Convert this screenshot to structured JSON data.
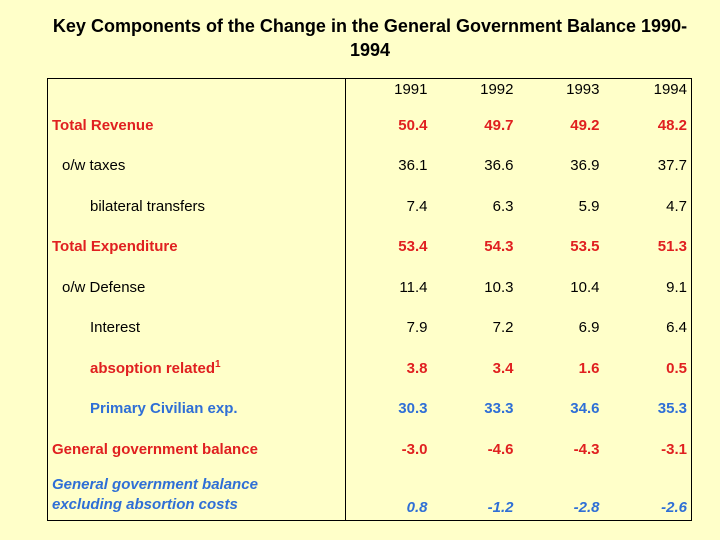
{
  "title": {
    "line1": "Key Components of the Change in the General Government Balance 1990-",
    "line2": "1994"
  },
  "table": {
    "years": [
      "1991",
      "1992",
      "1993",
      "1994"
    ],
    "rows": [
      {
        "label": "Total Revenue",
        "values": [
          "50.4",
          "49.7",
          "49.2",
          "48.2"
        ]
      },
      {
        "label": "o/w taxes",
        "values": [
          "36.1",
          "36.6",
          "36.9",
          "37.7"
        ]
      },
      {
        "label": "bilateral transfers",
        "values": [
          "7.4",
          "6.3",
          "5.9",
          "4.7"
        ]
      },
      {
        "label": "Total Expenditure",
        "values": [
          "53.4",
          "54.3",
          "53.5",
          "51.3"
        ]
      },
      {
        "label": "o/w Defense",
        "values": [
          "11.4",
          "10.3",
          "10.4",
          "9.1"
        ]
      },
      {
        "label": "Interest",
        "values": [
          "7.9",
          "7.2",
          "6.9",
          "6.4"
        ]
      },
      {
        "label": "absoption related",
        "sup": "1",
        "values": [
          "3.8",
          "3.4",
          "1.6",
          "0.5"
        ]
      },
      {
        "label": "Primary Civilian exp.",
        "values": [
          "30.3",
          "33.3",
          "34.6",
          "35.3"
        ]
      },
      {
        "label": "General government balance",
        "values": [
          "-3.0",
          "-4.6",
          "-4.3",
          "-3.1"
        ]
      },
      {
        "label_line1": "General government balance",
        "label_line2": "excluding absortion costs",
        "values": [
          "0.8",
          "-1.2",
          "-2.8",
          "-2.6"
        ]
      }
    ]
  },
  "colors": {
    "background": "#ffffc9",
    "red": "#e02020",
    "blue": "#2f6fd6"
  }
}
